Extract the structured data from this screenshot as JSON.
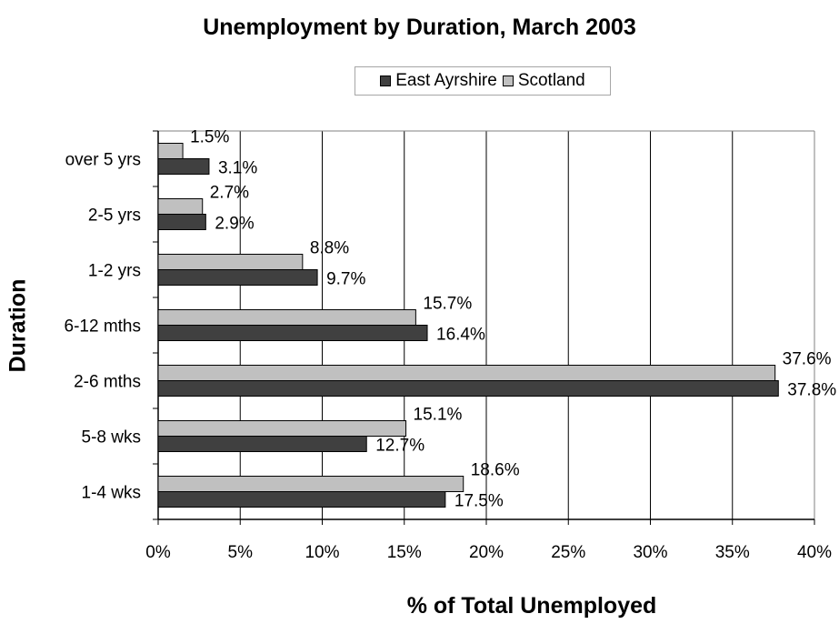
{
  "chart_data": {
    "type": "bar",
    "orientation": "horizontal",
    "title": "Unemployment by Duration, March 2003",
    "xlabel": "% of Total Unemployed",
    "ylabel": "Duration",
    "categories": [
      "over 5 yrs",
      "2-5 yrs",
      "1-2 yrs",
      "6-12 mths",
      "2-6 mths",
      "5-8 wks",
      "1-4 wks"
    ],
    "series": [
      {
        "name": "East Ayrshire",
        "color": "#404040",
        "values": [
          3.1,
          2.9,
          9.7,
          16.4,
          37.8,
          12.7,
          17.5
        ],
        "labels": [
          "3.1%",
          "2.9%",
          "9.7%",
          "16.4%",
          "37.8%",
          "12.7%",
          "17.5%"
        ]
      },
      {
        "name": "Scotland",
        "color": "#c0c0c0",
        "values": [
          1.5,
          2.7,
          8.8,
          15.7,
          37.6,
          15.1,
          18.6
        ],
        "labels": [
          "1.5%",
          "2.7%",
          "8.8%",
          "15.7%",
          "37.6%",
          "15.1%",
          "18.6%"
        ]
      }
    ],
    "xlim": [
      0,
      40
    ],
    "xticks": [
      0,
      5,
      10,
      15,
      20,
      25,
      30,
      35,
      40
    ],
    "xtick_labels": [
      "0%",
      "5%",
      "10%",
      "15%",
      "20%",
      "25%",
      "30%",
      "35%",
      "40%"
    ],
    "grid": true,
    "legend": "top"
  }
}
